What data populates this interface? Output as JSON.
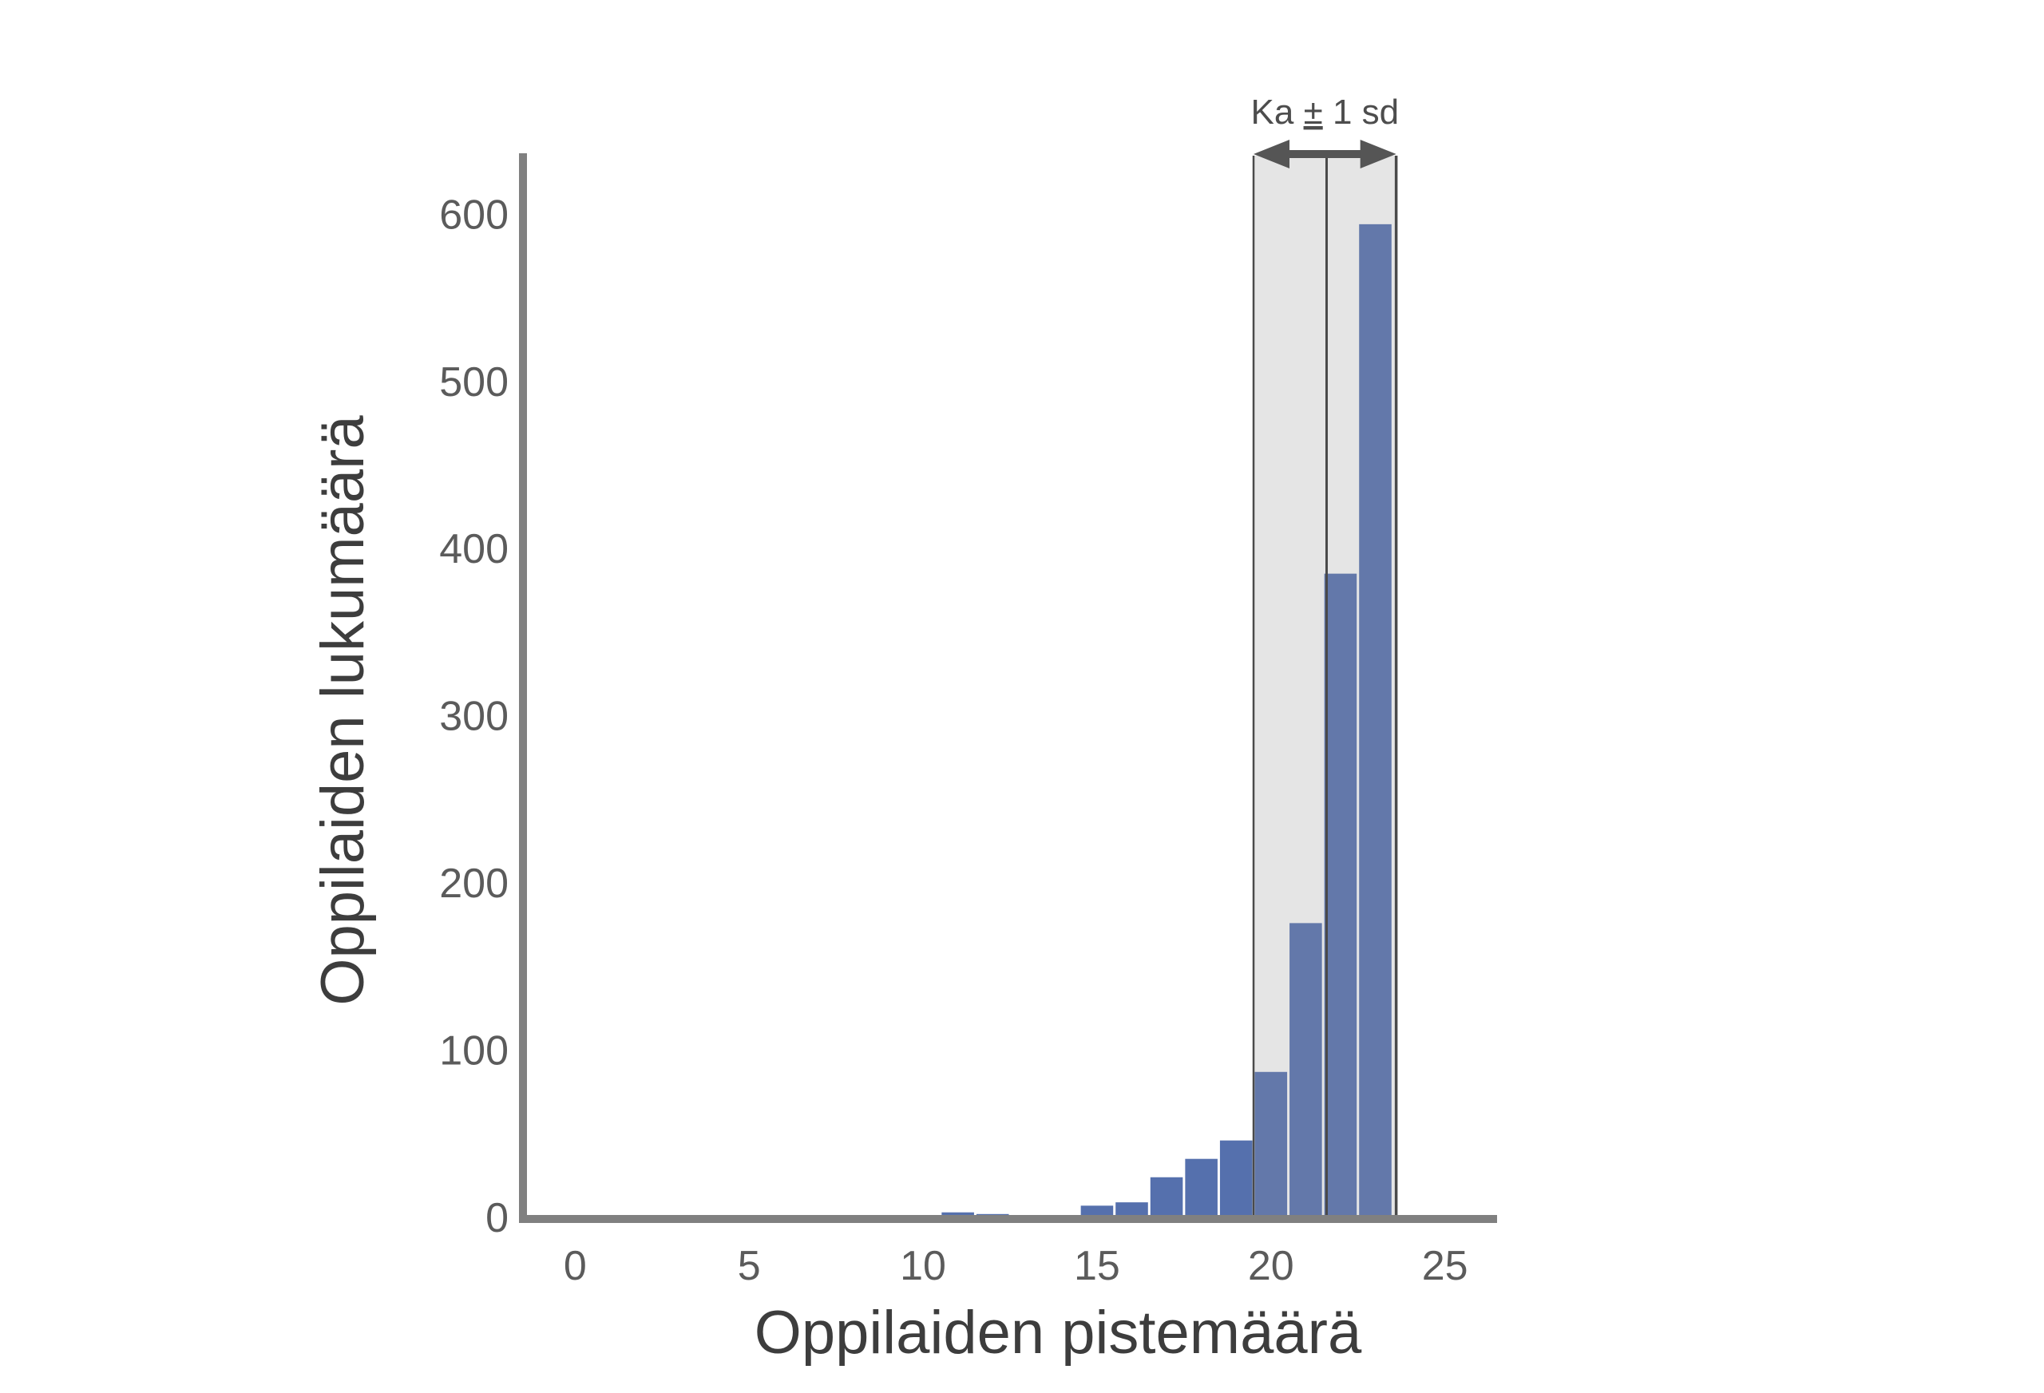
{
  "chart_data": {
    "type": "bar",
    "chart_kind": "histogram",
    "xlabel": "Oppilaiden pistemäärä",
    "ylabel": "Oppilaiden lukumäärä",
    "xlim": [
      -1.5,
      26.5
    ],
    "ylim": [
      0,
      635
    ],
    "x_ticks": [
      0,
      5,
      10,
      15,
      20,
      25
    ],
    "y_ticks": [
      0,
      100,
      200,
      300,
      400,
      500,
      600
    ],
    "grid": false,
    "legend": "none",
    "colors": {
      "bar": "#5570ad",
      "bar_band": "#6378aa",
      "band_fill": "#e5e5e5",
      "band_line": "#4a4a4a",
      "axis": "#808080",
      "arrow": "#555555"
    },
    "bins": [
      {
        "x": 7,
        "value": 1
      },
      {
        "x": 8,
        "value": 0
      },
      {
        "x": 9,
        "value": 1
      },
      {
        "x": 10,
        "value": 0
      },
      {
        "x": 11,
        "value": 3
      },
      {
        "x": 12,
        "value": 2
      },
      {
        "x": 13,
        "value": 0
      },
      {
        "x": 14,
        "value": 1
      },
      {
        "x": 15,
        "value": 7
      },
      {
        "x": 16,
        "value": 9
      },
      {
        "x": 17,
        "value": 24
      },
      {
        "x": 18,
        "value": 35
      },
      {
        "x": 19,
        "value": 46
      },
      {
        "x": 20,
        "value": 87
      },
      {
        "x": 21,
        "value": 176
      },
      {
        "x": 22,
        "value": 385
      },
      {
        "x": 23,
        "value": 594
      }
    ],
    "band": {
      "label_ka": "Ka",
      "label_pm": "±",
      "label_sd": "1 sd",
      "mean": 21.6,
      "low": 19.5,
      "high": 23.6
    }
  }
}
